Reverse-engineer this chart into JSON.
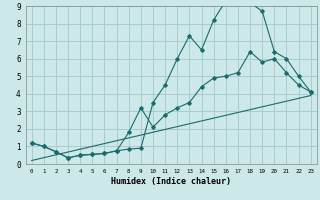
{
  "xlabel": "Humidex (Indice chaleur)",
  "bg_color": "#cce8e8",
  "grid_color": "#aacccc",
  "line_color": "#1a6b6b",
  "xlim": [
    -0.5,
    23.5
  ],
  "ylim": [
    0,
    9
  ],
  "xticks": [
    0,
    1,
    2,
    3,
    4,
    5,
    6,
    7,
    8,
    9,
    10,
    11,
    12,
    13,
    14,
    15,
    16,
    17,
    18,
    19,
    20,
    21,
    22,
    23
  ],
  "yticks": [
    0,
    1,
    2,
    3,
    4,
    5,
    6,
    7,
    8,
    9
  ],
  "line1_x": [
    0,
    1,
    2,
    3,
    4,
    5,
    6,
    7,
    8,
    9,
    10,
    11,
    12,
    13,
    14,
    15,
    16,
    17,
    18,
    19,
    20,
    21,
    22,
    23
  ],
  "line1_y": [
    1.2,
    1.0,
    0.7,
    0.35,
    0.5,
    0.55,
    0.6,
    0.75,
    0.85,
    0.9,
    3.5,
    4.5,
    6.0,
    7.3,
    6.5,
    8.2,
    9.3,
    9.3,
    9.2,
    8.7,
    6.4,
    6.0,
    5.0,
    4.1
  ],
  "line2_x": [
    0,
    1,
    2,
    3,
    4,
    5,
    6,
    7,
    8,
    9,
    10,
    11,
    12,
    13,
    14,
    15,
    16,
    17,
    18,
    19,
    20,
    21,
    22,
    23
  ],
  "line2_y": [
    1.2,
    1.0,
    0.7,
    0.35,
    0.5,
    0.55,
    0.6,
    0.75,
    1.8,
    3.2,
    2.1,
    2.8,
    3.2,
    3.5,
    4.4,
    4.9,
    5.0,
    5.2,
    6.4,
    5.8,
    6.0,
    5.2,
    4.5,
    4.1
  ],
  "line3_x": [
    0,
    23
  ],
  "line3_y": [
    0.2,
    3.9
  ]
}
